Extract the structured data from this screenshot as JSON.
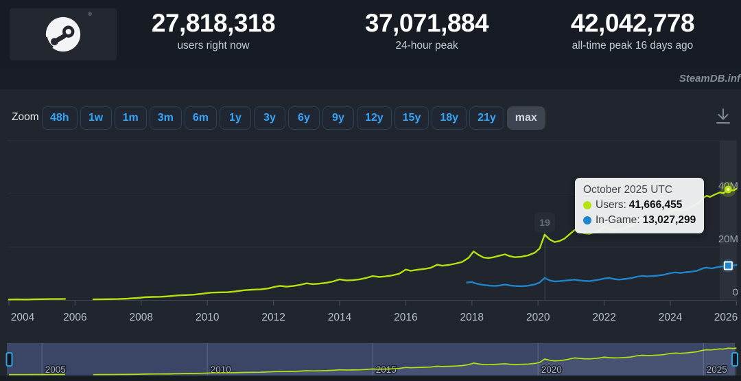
{
  "header": {
    "stats": [
      {
        "value": "27,818,318",
        "label": "users right now"
      },
      {
        "value": "37,071,884",
        "label": "24-hour peak"
      },
      {
        "value": "42,042,778",
        "label": "all-time peak 16 days ago"
      }
    ]
  },
  "watermark": "SteamDB.inf",
  "toolbar": {
    "zoom_label": "Zoom",
    "ranges": [
      "48h",
      "1w",
      "1m",
      "3m",
      "6m",
      "1y",
      "3y",
      "6y",
      "9y",
      "12y",
      "15y",
      "18y",
      "21y",
      "max"
    ],
    "active_range": "max",
    "download_icon": "download-icon"
  },
  "tooltip": {
    "title": "October 2025 UTC",
    "rows": [
      {
        "name": "Users",
        "value": "41,666,455",
        "color": "#b6e20e"
      },
      {
        "name": "In-Game",
        "value": "13,027,299",
        "color": "#1f85cc"
      }
    ]
  },
  "chart_data": {
    "type": "line",
    "x_axis": {
      "ticks": [
        2004,
        2006,
        2008,
        2010,
        2012,
        2014,
        2016,
        2018,
        2020,
        2022,
        2024,
        2026
      ]
    },
    "y_axis": {
      "unit": "millions of users",
      "ticks": [
        {
          "value": 0,
          "label": "0"
        },
        {
          "value": 20,
          "label": "20M"
        },
        {
          "value": 40,
          "label": "40M"
        },
        {
          "value": 60,
          "label": ""
        }
      ]
    },
    "flag": {
      "label": "19",
      "year": 2020.21
    },
    "hover": {
      "year": 2025.75,
      "users_millions": 41.666455,
      "ingame_millions": 13.027299
    },
    "colors": {
      "users": "#b6e20e",
      "ingame": "#1f85cc"
    },
    "series": [
      {
        "name": "Users",
        "color": "#b6e20e",
        "points": [
          [
            2004.0,
            0.3
          ],
          [
            2004.25,
            0.35
          ],
          [
            2004.5,
            0.3
          ],
          [
            2004.75,
            0.4
          ],
          [
            2005.0,
            0.45
          ],
          [
            2005.25,
            0.5
          ],
          [
            2005.5,
            0.5
          ],
          [
            2005.7,
            0.55
          ],
          [
            2005.9,
            null
          ],
          [
            2006.55,
            0.35
          ],
          [
            2006.8,
            0.4
          ],
          [
            2007.0,
            0.45
          ],
          [
            2007.3,
            0.5
          ],
          [
            2007.6,
            0.65
          ],
          [
            2007.9,
            0.9
          ],
          [
            2008.1,
            1.15
          ],
          [
            2008.35,
            1.3
          ],
          [
            2008.6,
            1.35
          ],
          [
            2008.85,
            1.55
          ],
          [
            2009.1,
            1.85
          ],
          [
            2009.35,
            2.0
          ],
          [
            2009.6,
            2.15
          ],
          [
            2009.85,
            2.5
          ],
          [
            2010.1,
            2.9
          ],
          [
            2010.35,
            3.0
          ],
          [
            2010.6,
            3.05
          ],
          [
            2010.85,
            3.35
          ],
          [
            2011.1,
            3.8
          ],
          [
            2011.35,
            4.0
          ],
          [
            2011.6,
            4.1
          ],
          [
            2011.85,
            4.5
          ],
          [
            2012.05,
            5.1
          ],
          [
            2012.2,
            5.45
          ],
          [
            2012.4,
            5.15
          ],
          [
            2012.6,
            5.4
          ],
          [
            2012.8,
            5.8
          ],
          [
            2013.0,
            6.4
          ],
          [
            2013.2,
            6.1
          ],
          [
            2013.4,
            6.3
          ],
          [
            2013.6,
            6.6
          ],
          [
            2013.8,
            7.1
          ],
          [
            2014.0,
            7.9
          ],
          [
            2014.2,
            7.5
          ],
          [
            2014.4,
            7.6
          ],
          [
            2014.6,
            7.9
          ],
          [
            2014.8,
            8.4
          ],
          [
            2015.0,
            9.1
          ],
          [
            2015.2,
            8.8
          ],
          [
            2015.4,
            9.0
          ],
          [
            2015.6,
            9.4
          ],
          [
            2015.8,
            10.0
          ],
          [
            2016.0,
            11.6
          ],
          [
            2016.15,
            11.1
          ],
          [
            2016.35,
            11.5
          ],
          [
            2016.55,
            11.8
          ],
          [
            2016.75,
            12.2
          ],
          [
            2016.95,
            13.4
          ],
          [
            2017.1,
            13.0
          ],
          [
            2017.3,
            13.3
          ],
          [
            2017.5,
            13.8
          ],
          [
            2017.7,
            14.4
          ],
          [
            2017.9,
            16.0
          ],
          [
            2018.05,
            18.4
          ],
          [
            2018.2,
            17.1
          ],
          [
            2018.35,
            16.1
          ],
          [
            2018.5,
            15.9
          ],
          [
            2018.65,
            16.2
          ],
          [
            2018.8,
            16.7
          ],
          [
            2019.0,
            17.3
          ],
          [
            2019.15,
            16.6
          ],
          [
            2019.3,
            16.2
          ],
          [
            2019.5,
            16.4
          ],
          [
            2019.7,
            16.9
          ],
          [
            2019.9,
            17.9
          ],
          [
            2020.05,
            19.5
          ],
          [
            2020.2,
            24.7
          ],
          [
            2020.35,
            22.9
          ],
          [
            2020.5,
            21.9
          ],
          [
            2020.65,
            22.3
          ],
          [
            2020.8,
            23.2
          ],
          [
            2020.95,
            24.8
          ],
          [
            2021.1,
            26.4
          ],
          [
            2021.25,
            25.8
          ],
          [
            2021.4,
            25.2
          ],
          [
            2021.55,
            25.0
          ],
          [
            2021.7,
            25.6
          ],
          [
            2021.85,
            26.3
          ],
          [
            2022.0,
            27.7
          ],
          [
            2022.15,
            26.9
          ],
          [
            2022.3,
            26.4
          ],
          [
            2022.45,
            26.7
          ],
          [
            2022.6,
            27.1
          ],
          [
            2022.8,
            27.9
          ],
          [
            2023.0,
            29.9
          ],
          [
            2023.15,
            30.6
          ],
          [
            2023.3,
            30.1
          ],
          [
            2023.45,
            30.4
          ],
          [
            2023.6,
            30.9
          ],
          [
            2023.8,
            31.6
          ],
          [
            2024.0,
            33.4
          ],
          [
            2024.15,
            34.1
          ],
          [
            2024.3,
            33.7
          ],
          [
            2024.45,
            34.2
          ],
          [
            2024.6,
            34.9
          ],
          [
            2024.8,
            36.1
          ],
          [
            2025.0,
            38.6
          ],
          [
            2025.1,
            39.3
          ],
          [
            2025.2,
            38.9
          ],
          [
            2025.35,
            39.8
          ],
          [
            2025.5,
            40.6
          ],
          [
            2025.6,
            40.2
          ],
          [
            2025.75,
            41.67
          ],
          [
            2025.9,
            41.3
          ],
          [
            2026.0,
            41.9
          ]
        ]
      },
      {
        "name": "In-Game",
        "color": "#1f85cc",
        "points": [
          [
            2017.85,
            6.7
          ],
          [
            2018.0,
            6.9
          ],
          [
            2018.1,
            6.4
          ],
          [
            2018.25,
            6.0
          ],
          [
            2018.4,
            5.7
          ],
          [
            2018.55,
            5.5
          ],
          [
            2018.7,
            5.4
          ],
          [
            2018.85,
            5.6
          ],
          [
            2019.0,
            5.9
          ],
          [
            2019.15,
            5.6
          ],
          [
            2019.3,
            5.4
          ],
          [
            2019.5,
            5.3
          ],
          [
            2019.7,
            5.5
          ],
          [
            2019.9,
            6.0
          ],
          [
            2020.05,
            6.7
          ],
          [
            2020.2,
            8.4
          ],
          [
            2020.35,
            7.5
          ],
          [
            2020.5,
            7.1
          ],
          [
            2020.65,
            7.2
          ],
          [
            2020.8,
            7.4
          ],
          [
            2020.95,
            7.6
          ],
          [
            2021.1,
            7.8
          ],
          [
            2021.25,
            7.5
          ],
          [
            2021.4,
            7.3
          ],
          [
            2021.55,
            7.2
          ],
          [
            2021.7,
            7.5
          ],
          [
            2021.85,
            7.8
          ],
          [
            2022.0,
            8.2
          ],
          [
            2022.15,
            8.4
          ],
          [
            2022.3,
            8.0
          ],
          [
            2022.45,
            7.8
          ],
          [
            2022.6,
            8.0
          ],
          [
            2022.8,
            8.3
          ],
          [
            2023.0,
            8.9
          ],
          [
            2023.15,
            9.2
          ],
          [
            2023.3,
            9.0
          ],
          [
            2023.45,
            9.1
          ],
          [
            2023.6,
            9.3
          ],
          [
            2023.8,
            9.6
          ],
          [
            2024.0,
            10.2
          ],
          [
            2024.15,
            10.5
          ],
          [
            2024.3,
            10.3
          ],
          [
            2024.45,
            10.5
          ],
          [
            2024.6,
            10.7
          ],
          [
            2024.8,
            11.1
          ],
          [
            2025.0,
            12.1
          ],
          [
            2025.1,
            12.3
          ],
          [
            2025.25,
            12.0
          ],
          [
            2025.4,
            12.4
          ],
          [
            2025.55,
            12.7
          ],
          [
            2025.75,
            13.03
          ],
          [
            2025.9,
            13.1
          ],
          [
            2026.0,
            13.3
          ]
        ]
      }
    ],
    "navigator": {
      "year_labels": [
        2005,
        2010,
        2015,
        2020,
        2025
      ]
    }
  }
}
